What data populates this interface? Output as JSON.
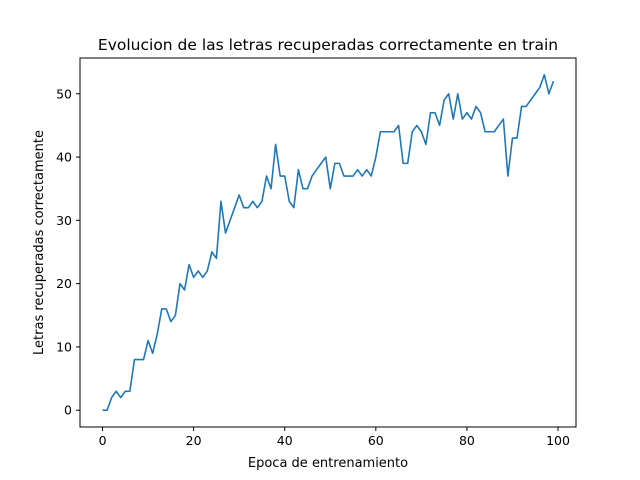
{
  "chart_data": {
    "type": "line",
    "title": "Evolucion de las letras recuperadas correctamente en train",
    "xlabel": "Epoca de entrenamiento",
    "ylabel": "Letras recuperadas correctamente",
    "xlim": [
      -4.95,
      103.95
    ],
    "ylim": [
      -2.65,
      55.65
    ],
    "xticks": [
      0,
      20,
      40,
      60,
      80,
      100
    ],
    "yticks": [
      0,
      10,
      20,
      30,
      40,
      50
    ],
    "grid": false,
    "legend": "none",
    "line_color": "#1f77b4",
    "x": [
      0,
      1,
      2,
      3,
      4,
      5,
      6,
      7,
      8,
      9,
      10,
      11,
      12,
      13,
      14,
      15,
      16,
      17,
      18,
      19,
      20,
      21,
      22,
      23,
      24,
      25,
      26,
      27,
      28,
      29,
      30,
      31,
      32,
      33,
      34,
      35,
      36,
      37,
      38,
      39,
      40,
      41,
      42,
      43,
      44,
      45,
      46,
      47,
      48,
      49,
      50,
      51,
      52,
      53,
      54,
      55,
      56,
      57,
      58,
      59,
      60,
      61,
      62,
      63,
      64,
      65,
      66,
      67,
      68,
      69,
      70,
      71,
      72,
      73,
      74,
      75,
      76,
      77,
      78,
      79,
      80,
      81,
      82,
      83,
      84,
      85,
      86,
      87,
      88,
      89,
      90,
      91,
      92,
      93,
      94,
      95,
      96,
      97,
      98,
      99
    ],
    "y": [
      0,
      0,
      2,
      3,
      2,
      3,
      3,
      8,
      8,
      8,
      11,
      9,
      12,
      16,
      16,
      14,
      15,
      20,
      19,
      23,
      21,
      22,
      21,
      22,
      25,
      24,
      33,
      28,
      30,
      32,
      34,
      32,
      32,
      33,
      32,
      33,
      37,
      35,
      42,
      37,
      37,
      33,
      32,
      38,
      35,
      35,
      37,
      38,
      39,
      40,
      35,
      39,
      39,
      37,
      37,
      37,
      38,
      37,
      38,
      37,
      40,
      44,
      44,
      44,
      44,
      45,
      39,
      39,
      44,
      45,
      44,
      42,
      47,
      47,
      45,
      49,
      50,
      46,
      50,
      46,
      47,
      46,
      48,
      47,
      44,
      44,
      44,
      45,
      46,
      37,
      43,
      43,
      48,
      48,
      49,
      50,
      51,
      53,
      50,
      52
    ]
  }
}
